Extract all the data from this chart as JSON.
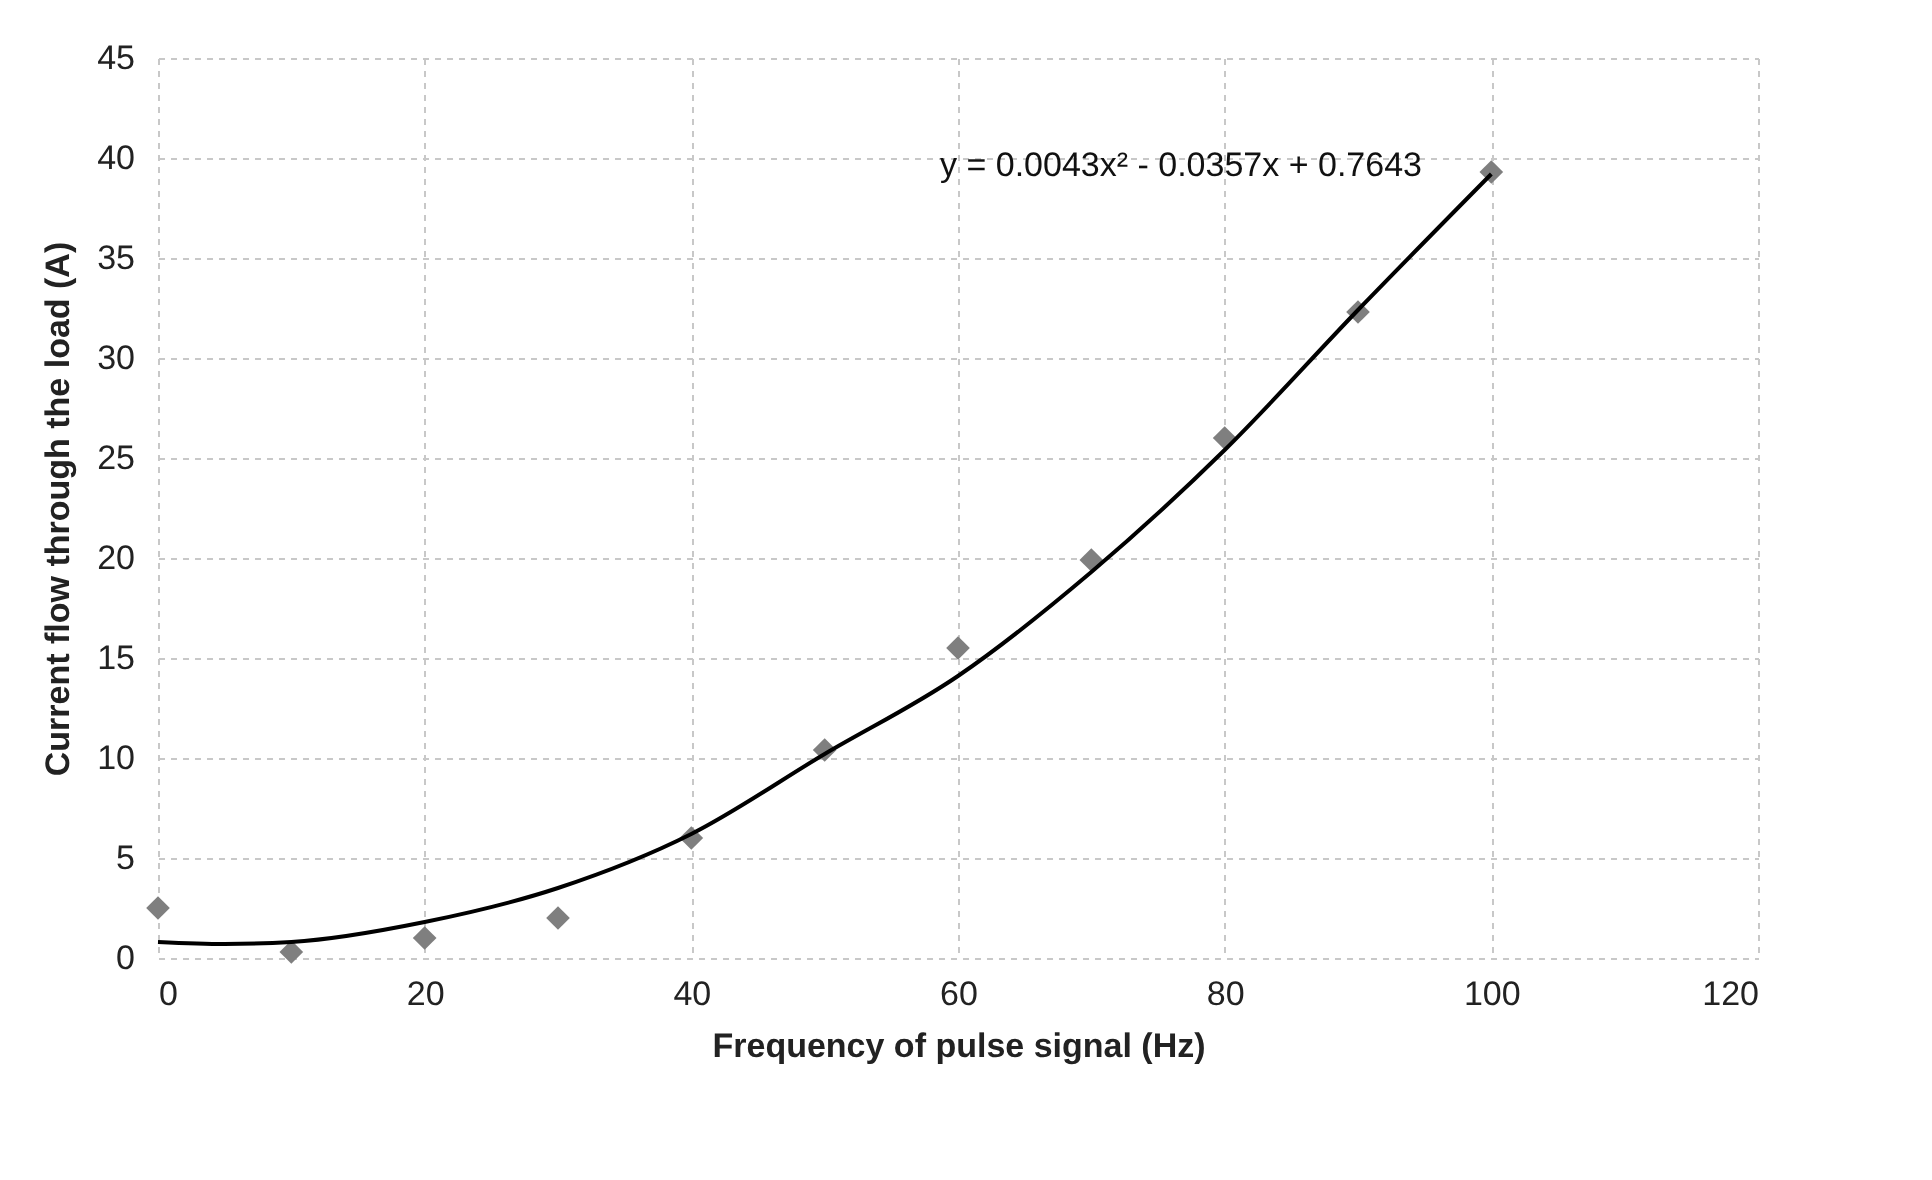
{
  "chart_data": {
    "type": "scatter",
    "xlabel": "Frequency of pulse signal (Hz)",
    "ylabel": "Current flow through the load (A)",
    "series": [
      {
        "color": "#7f7f7f",
        "marker": "diamond",
        "x": [
          0,
          10,
          20,
          30,
          40,
          50,
          60,
          70,
          80,
          90,
          100
        ],
        "values": [
          2.5,
          0.3,
          1.0,
          2.0,
          6.0,
          10.4,
          15.5,
          19.9,
          26.0,
          32.3,
          39.3
        ]
      },
      {
        "type": "line",
        "color": "#000000",
        "line_style": "solid",
        "x": [
          0,
          5,
          10,
          20,
          30,
          40,
          50,
          60,
          70,
          80,
          90,
          100
        ],
        "values": [
          0.8,
          0.7,
          0.8,
          1.8,
          3.5,
          6.2,
          10.2,
          14.1,
          19.3,
          25.4,
          32.4,
          39.2
        ]
      }
    ],
    "annotations": [
      "y = 0.0043x² - 0.0357x + 0.7643"
    ],
    "xlim": [
      0,
      120
    ],
    "xticks": [
      0,
      20,
      40,
      60,
      80,
      100,
      120
    ],
    "ylim": [
      0,
      45
    ],
    "yticks": [
      0,
      5,
      10,
      15,
      20,
      25,
      30,
      35,
      40,
      45
    ],
    "grid": true
  }
}
